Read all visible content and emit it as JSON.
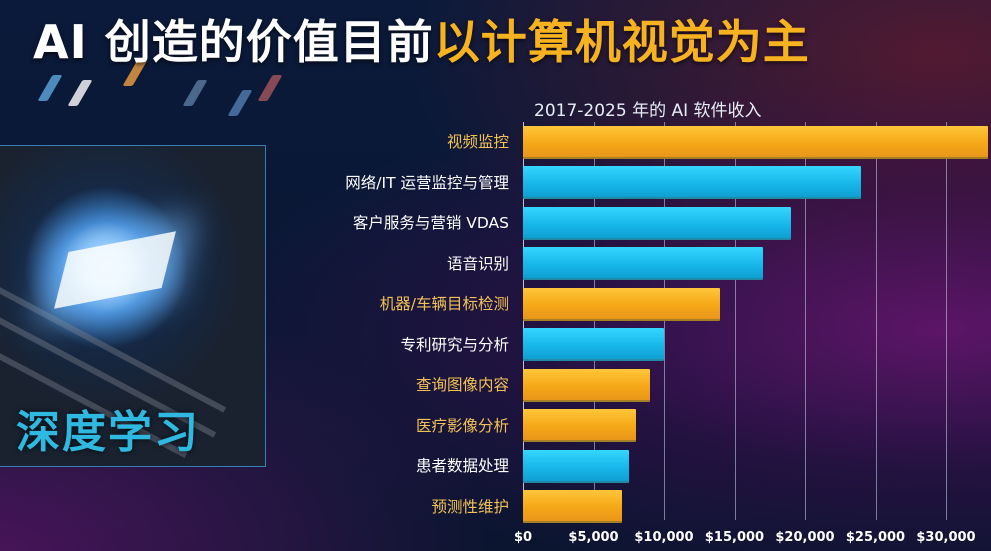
{
  "title": {
    "part_white": "AI 创造的价值目前",
    "part_yellow": "以计算机视觉为主"
  },
  "photo": {
    "label": "深度学习"
  },
  "colors": {
    "highlight": "#f5a817",
    "normal": "#18b8ea",
    "title_yellow": "#f7b21f"
  },
  "chart_data": {
    "type": "bar",
    "orientation": "horizontal",
    "title": "2017-2025 年的 AI 软件收入",
    "xlabel": "",
    "ylabel": "",
    "xlim": [
      0,
      33000
    ],
    "grid": true,
    "legend": null,
    "categories": [
      "视频监控",
      "网络/IT 运营监控与管理",
      "客户服务与营销 VDAS",
      "语音识别",
      "机器/车辆目标检测",
      "专利研究与分析",
      "查询图像内容",
      "医疗影像分析",
      "患者数据处理",
      "预测性维护"
    ],
    "values": [
      33000,
      24000,
      19000,
      17000,
      14000,
      10000,
      9000,
      8000,
      7500,
      7000
    ],
    "bar_colors": [
      "orange",
      "blue",
      "blue",
      "blue",
      "orange",
      "blue",
      "orange",
      "orange",
      "blue",
      "orange"
    ],
    "x_ticks": [
      "$0",
      "$5,000",
      "$10,000",
      "$15,000",
      "$20,000",
      "$25,000",
      "$30,000"
    ],
    "x_tick_values": [
      0,
      5000,
      10000,
      15000,
      20000,
      25000,
      30000
    ]
  }
}
